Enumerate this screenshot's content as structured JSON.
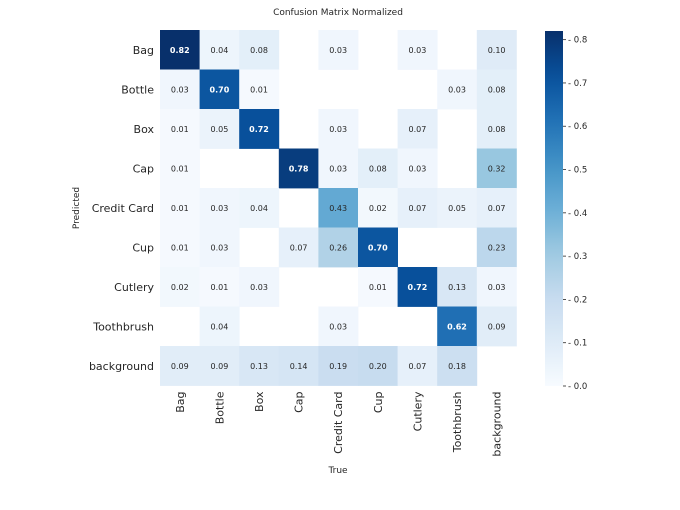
{
  "chart_data": {
    "type": "heatmap",
    "title": "Confusion Matrix Normalized",
    "xlabel": "True",
    "ylabel": "Predicted",
    "rows": [
      "Bag",
      "Bottle",
      "Box",
      "Cap",
      "Credit Card",
      "Cup",
      "Cutlery",
      "Toothbrush",
      "background"
    ],
    "cols": [
      "Bag",
      "Bottle",
      "Box",
      "Cap",
      "Credit Card",
      "Cup",
      "Cutlery",
      "Toothbrush",
      "background"
    ],
    "values": [
      [
        0.82,
        0.04,
        0.08,
        null,
        0.03,
        null,
        0.03,
        null,
        0.1
      ],
      [
        0.03,
        0.7,
        0.01,
        null,
        null,
        null,
        null,
        0.03,
        0.08
      ],
      [
        0.01,
        0.05,
        0.72,
        null,
        0.03,
        null,
        0.07,
        null,
        0.08
      ],
      [
        0.01,
        null,
        null,
        0.78,
        0.03,
        0.08,
        0.03,
        null,
        0.32
      ],
      [
        0.01,
        0.03,
        0.04,
        null,
        0.43,
        0.02,
        0.07,
        0.05,
        0.07
      ],
      [
        0.01,
        0.03,
        null,
        0.07,
        0.26,
        0.7,
        null,
        null,
        0.23
      ],
      [
        0.02,
        0.01,
        0.03,
        null,
        null,
        0.01,
        0.72,
        0.13,
        0.03
      ],
      [
        null,
        0.04,
        null,
        null,
        0.03,
        null,
        null,
        0.62,
        0.09
      ],
      [
        0.09,
        0.09,
        0.13,
        0.14,
        0.19,
        0.2,
        0.07,
        0.18,
        null
      ]
    ],
    "value_labels": [
      [
        "0.82",
        "0.04",
        "0.08",
        "",
        "0.03",
        "",
        "0.03",
        "",
        "0.10"
      ],
      [
        "0.03",
        "0.70",
        "0.01",
        "",
        "",
        "",
        "",
        "0.03",
        "0.08"
      ],
      [
        "0.01",
        "0.05",
        "0.72",
        "",
        "0.03",
        "",
        "0.07",
        "",
        "0.08"
      ],
      [
        "0.01",
        "",
        "",
        "0.78",
        "0.03",
        "0.08",
        "0.03",
        "",
        "0.32"
      ],
      [
        "0.01",
        "0.03",
        "0.04",
        "",
        "0.43",
        "0.02",
        "0.07",
        "0.05",
        "0.07"
      ],
      [
        "0.01",
        "0.03",
        "",
        "0.07",
        "0.26",
        "0.70",
        "",
        "",
        "0.23"
      ],
      [
        "0.02",
        "0.01",
        "0.03",
        "",
        "",
        "0.01",
        "0.72",
        "0.13",
        "0.03"
      ],
      [
        "",
        "0.04",
        "",
        "",
        "0.03",
        "",
        "",
        "0.62",
        "0.09"
      ],
      [
        "0.09",
        "0.09",
        "0.13",
        "0.14",
        "0.19",
        "0.20",
        "0.07",
        "0.18",
        ""
      ]
    ],
    "colormap": "Blues",
    "vmin": 0.0,
    "vmax": 0.82,
    "colorbar_ticks": [
      0.0,
      0.1,
      0.2,
      0.3,
      0.4,
      0.5,
      0.6,
      0.7,
      0.8
    ],
    "colorbar_tick_labels": [
      "0.0",
      "0.1",
      "0.2",
      "0.3",
      "0.4",
      "0.5",
      "0.6",
      "0.7",
      "0.8"
    ],
    "grid": false,
    "legend": "colorbar-right"
  }
}
